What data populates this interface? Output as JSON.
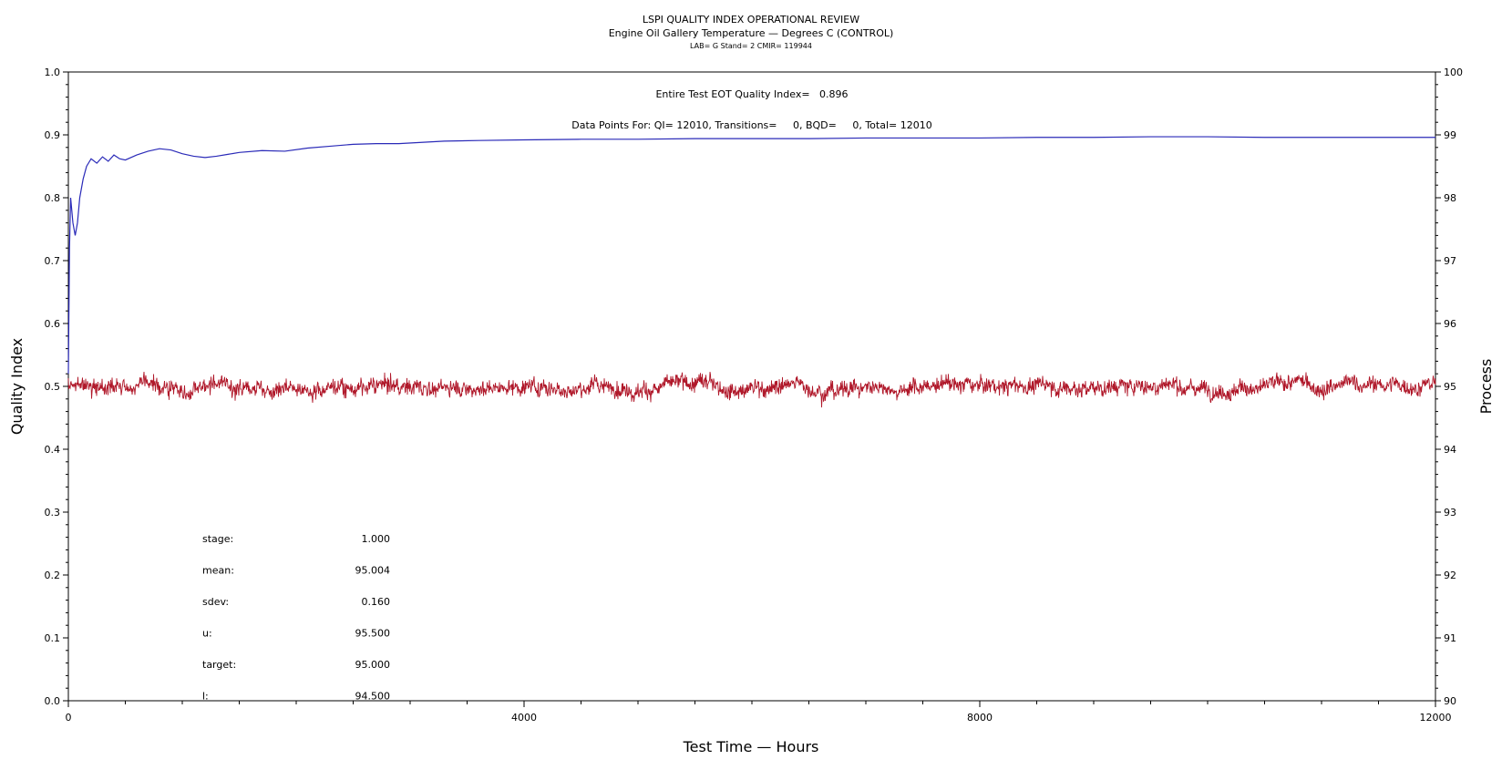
{
  "chart_data": {
    "type": "line",
    "title": "LSPI QUALITY INDEX OPERATIONAL REVIEW",
    "subtitle": "Engine Oil Gallery Temperature — Degrees C (CONTROL)",
    "subsubtitle": "LAB= G Stand= 2 CMIR= 119944",
    "xlabel": "Test Time — Hours",
    "ylabel_left": "Quality Index",
    "ylabel_right": "Process",
    "xlim": [
      0,
      12000
    ],
    "ylim_left": [
      0.0,
      1.0
    ],
    "ylim_right": [
      90,
      100
    ],
    "x_ticks": [
      "0",
      "4000",
      "8000",
      "12000"
    ],
    "y_left_ticks": [
      "0.0",
      "0.1",
      "0.2",
      "0.3",
      "0.4",
      "0.5",
      "0.6",
      "0.7",
      "0.8",
      "0.9",
      "1.0"
    ],
    "y_right_ticks": [
      "90",
      "91",
      "92",
      "93",
      "94",
      "95",
      "96",
      "97",
      "98",
      "99",
      "100"
    ],
    "annotation_quality": "Entire Test EOT Quality Index=   0.896",
    "annotation_points": "Data Points For: QI= 12010, Transitions=     0, BQD=     0, Total= 12010",
    "stats": [
      {
        "label": "stage:",
        "value": "1.000"
      },
      {
        "label": "mean:",
        "value": "95.004"
      },
      {
        "label": "sdev:",
        "value": "0.160"
      },
      {
        "label": "u:",
        "value": "95.500"
      },
      {
        "label": "target:",
        "value": "95.000"
      },
      {
        "label": "l:",
        "value": "94.500"
      }
    ],
    "series": [
      {
        "color": "#2a2ab8",
        "axis": "left",
        "x": [
          0,
          10,
          20,
          40,
          60,
          80,
          100,
          130,
          160,
          200,
          250,
          300,
          350,
          400,
          450,
          500,
          600,
          700,
          800,
          900,
          1000,
          1100,
          1200,
          1300,
          1400,
          1500,
          1700,
          1900,
          2100,
          2300,
          2500,
          2700,
          2900,
          3100,
          3300,
          3600,
          4000,
          4500,
          5000,
          5500,
          6000,
          6500,
          7000,
          7500,
          8000,
          8500,
          9000,
          9500,
          10000,
          10500,
          11000,
          11500,
          12000
        ],
        "values": [
          0.52,
          0.72,
          0.8,
          0.76,
          0.74,
          0.76,
          0.8,
          0.83,
          0.85,
          0.862,
          0.855,
          0.865,
          0.858,
          0.868,
          0.862,
          0.86,
          0.868,
          0.874,
          0.878,
          0.876,
          0.87,
          0.866,
          0.864,
          0.866,
          0.869,
          0.872,
          0.875,
          0.874,
          0.879,
          0.882,
          0.885,
          0.886,
          0.886,
          0.888,
          0.89,
          0.891,
          0.892,
          0.893,
          0.893,
          0.894,
          0.894,
          0.894,
          0.895,
          0.895,
          0.895,
          0.896,
          0.896,
          0.897,
          0.897,
          0.896,
          0.896,
          0.896,
          0.896
        ]
      },
      {
        "color": "#b0182a",
        "axis": "right",
        "x_start": 0,
        "x_end": 12000,
        "mean": 95.004,
        "sdev": 0.16
      }
    ]
  }
}
